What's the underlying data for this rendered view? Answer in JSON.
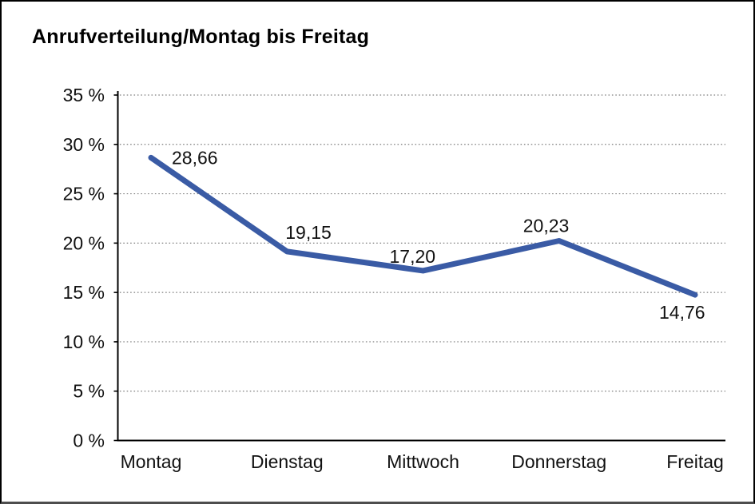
{
  "title": "Anrufverteilung/Montag bis Freitag",
  "colors": {
    "line": "#3A5BA5",
    "grid": "#7f7f7f",
    "axis": "#000000",
    "text": "#111111",
    "background": "#ffffff",
    "frame_border": "#000000"
  },
  "chart_data": {
    "type": "line",
    "title": "Anrufverteilung/Montag bis Freitag",
    "categories": [
      "Montag",
      "Dienstag",
      "Mittwoch",
      "Donnerstag",
      "Freitag"
    ],
    "values": [
      28.66,
      19.15,
      17.2,
      20.23,
      14.76
    ],
    "value_labels": [
      "28,66",
      "19,15",
      "17,20",
      "20,23",
      "14,76"
    ],
    "series_name": "Anrufverteilung",
    "xlabel": "",
    "ylabel": "",
    "ylim": [
      0,
      35
    ],
    "ytick_step": 5,
    "ytick_labels": [
      "0 %",
      "5 %",
      "10 %",
      "15 %",
      "20 %",
      "25 %",
      "30 %",
      "35 %"
    ],
    "grid": "horizontal-dotted",
    "legend_position": "none",
    "line_color": "#3A5BA5"
  }
}
